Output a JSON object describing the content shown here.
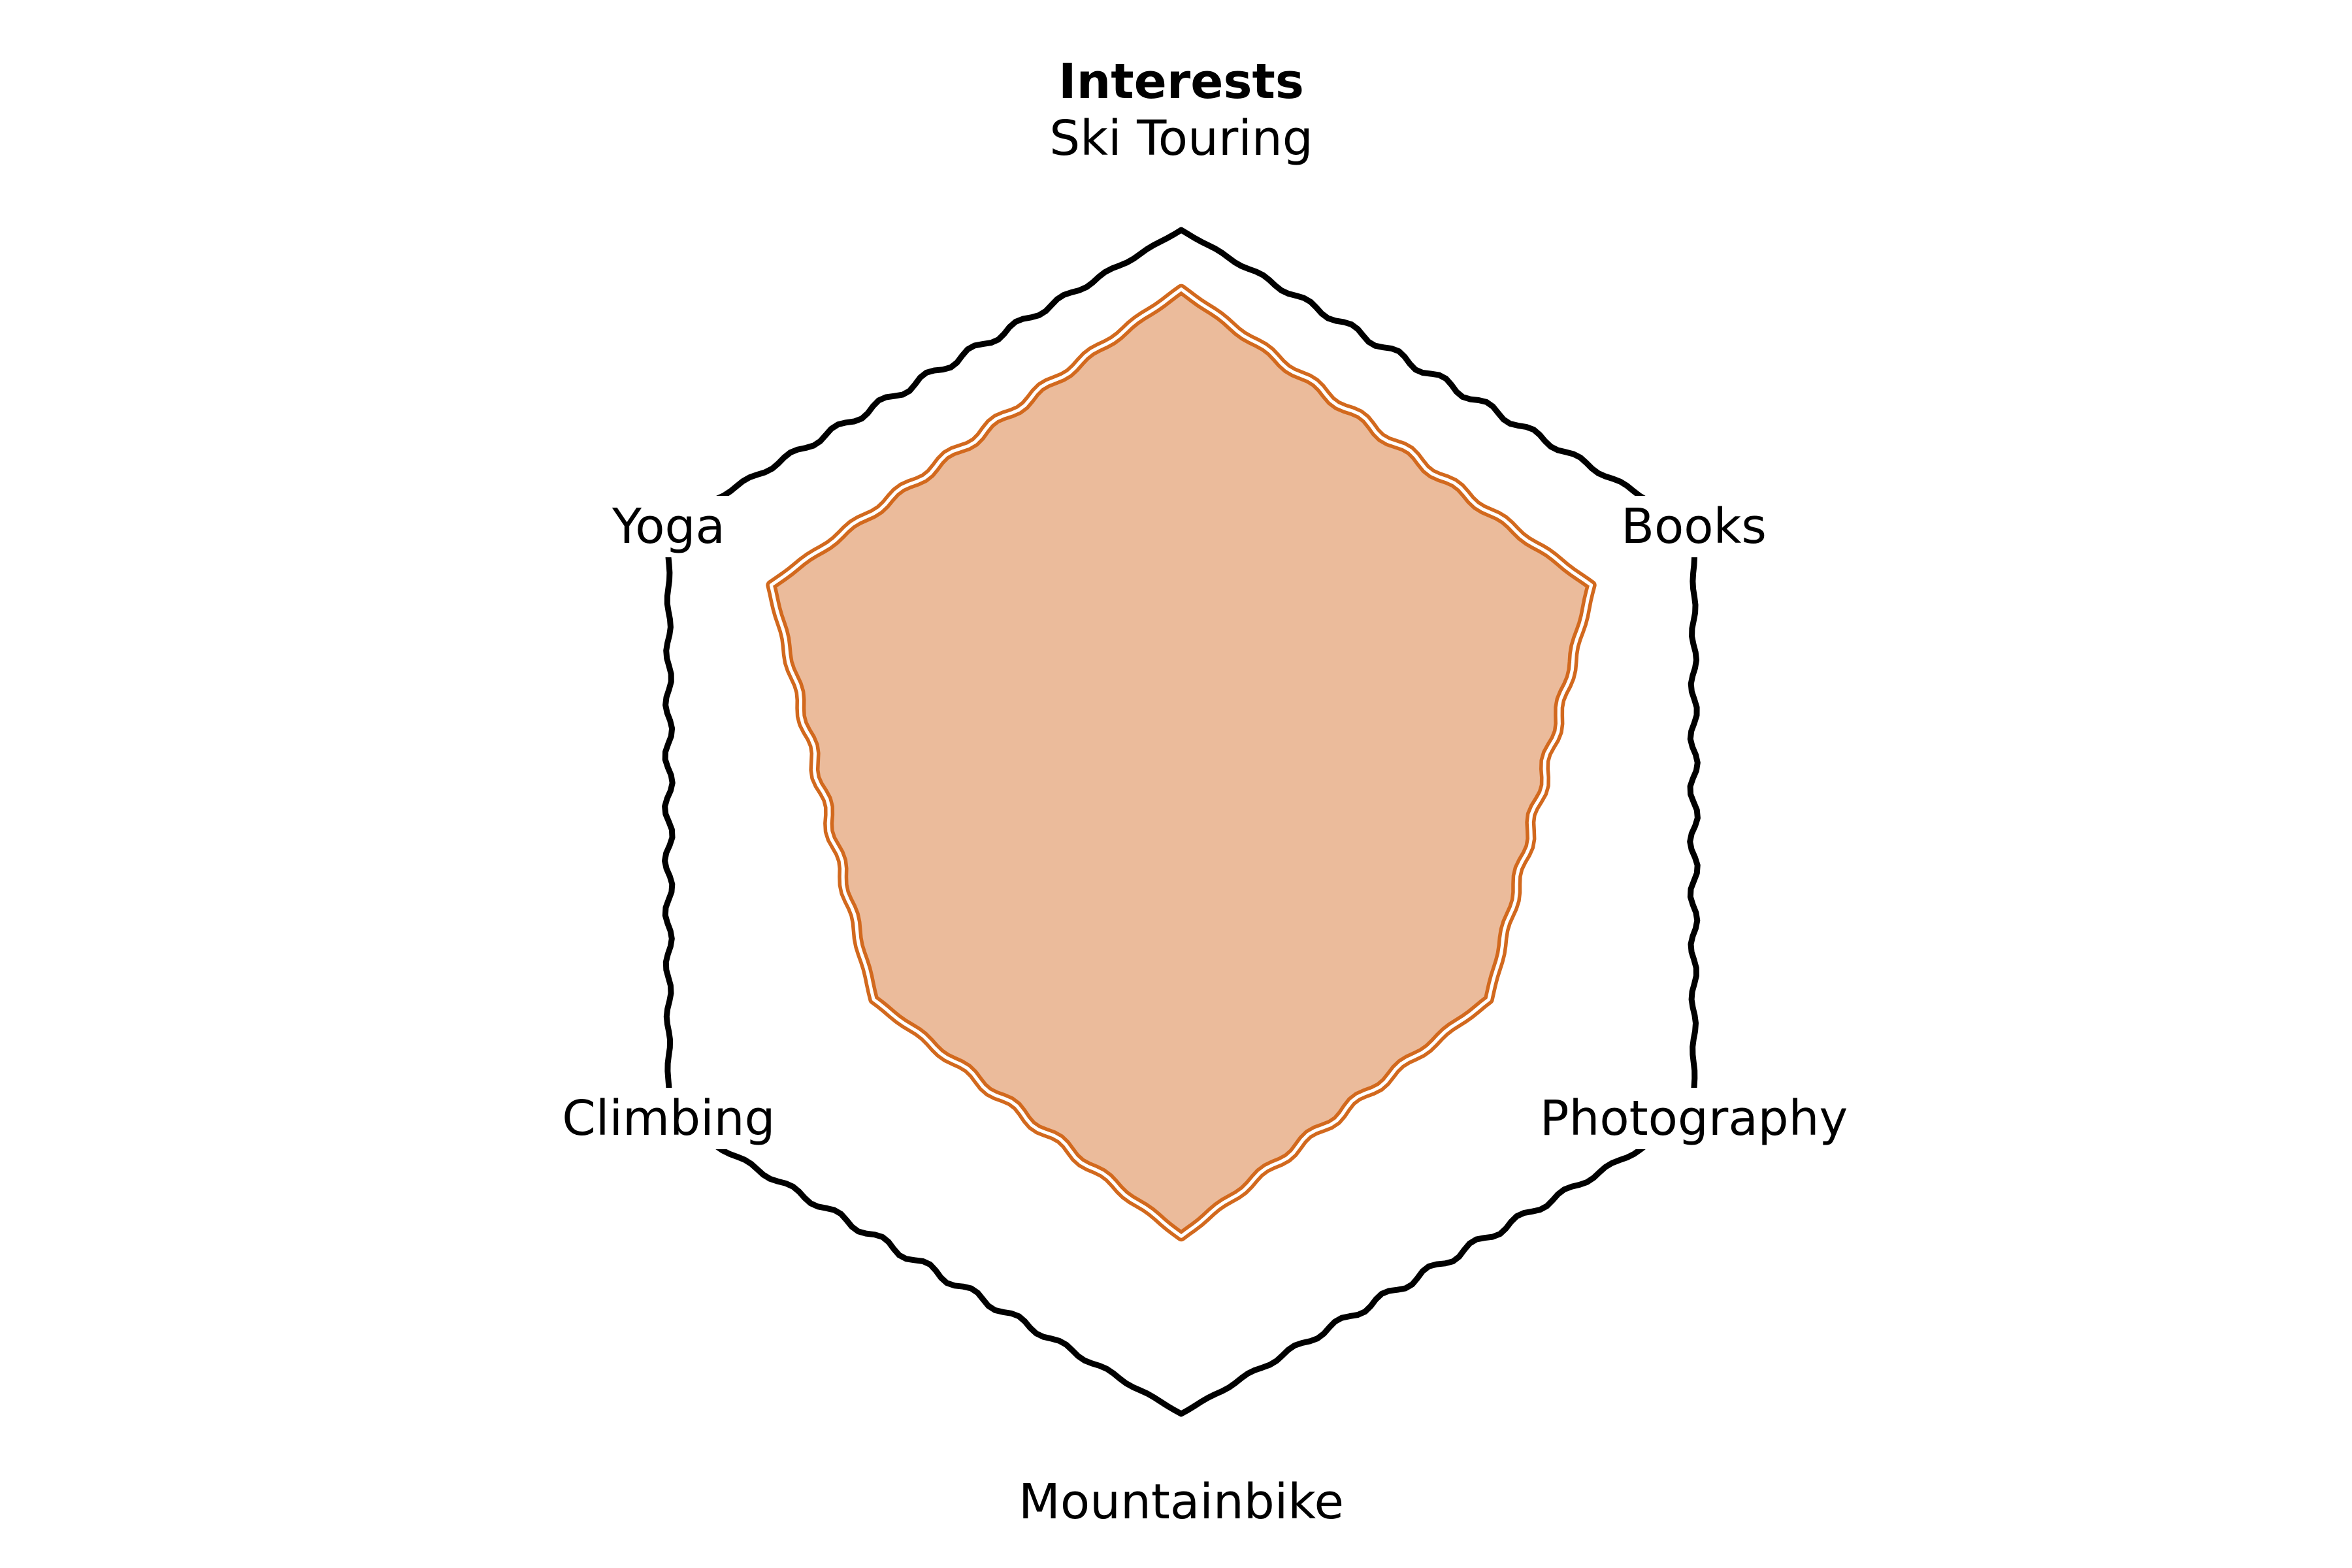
{
  "chart_data": {
    "type": "radar",
    "title": "Interests",
    "categories": [
      "Ski Touring",
      "Books",
      "Photography",
      "Mountainbike",
      "Climbing",
      "Yoga"
    ],
    "series": [
      {
        "values": [
          0.9,
          0.8,
          0.6,
          0.7,
          0.6,
          0.8
        ]
      }
    ],
    "rlim": [
      0,
      1
    ],
    "grid": false,
    "colors": {
      "line": "#d2691e",
      "fill": "#ebbb9b",
      "frame": "#000000"
    }
  }
}
